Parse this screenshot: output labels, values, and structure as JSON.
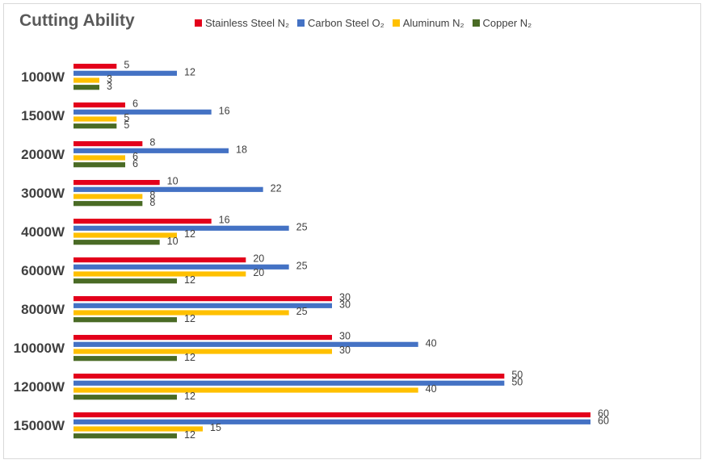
{
  "chart_data": {
    "type": "bar",
    "orientation": "horizontal",
    "title": "Cutting Ability",
    "xlabel": "",
    "ylabel": "",
    "xlim": [
      0,
      60
    ],
    "grid": false,
    "legend_position": "top",
    "categories": [
      "1000W",
      "1500W",
      "2000W",
      "3000W",
      "4000W",
      "6000W",
      "8000W",
      "10000W",
      "12000W",
      "15000W"
    ],
    "series": [
      {
        "name": "Stainless Steel N₂",
        "color": "#e3001b",
        "values": [
          5,
          6,
          8,
          10,
          16,
          20,
          30,
          30,
          50,
          60
        ]
      },
      {
        "name": "Carbon Steel O₂",
        "color": "#4472c4",
        "values": [
          12,
          16,
          18,
          22,
          25,
          25,
          30,
          40,
          50,
          60
        ]
      },
      {
        "name": "Aluminum N₂",
        "color": "#ffc000",
        "values": [
          3,
          5,
          6,
          8,
          12,
          20,
          25,
          30,
          40,
          15
        ]
      },
      {
        "name": "Copper N₂",
        "color": "#4a6b25",
        "values": [
          3,
          5,
          6,
          8,
          10,
          12,
          12,
          12,
          12,
          12
        ]
      }
    ]
  }
}
